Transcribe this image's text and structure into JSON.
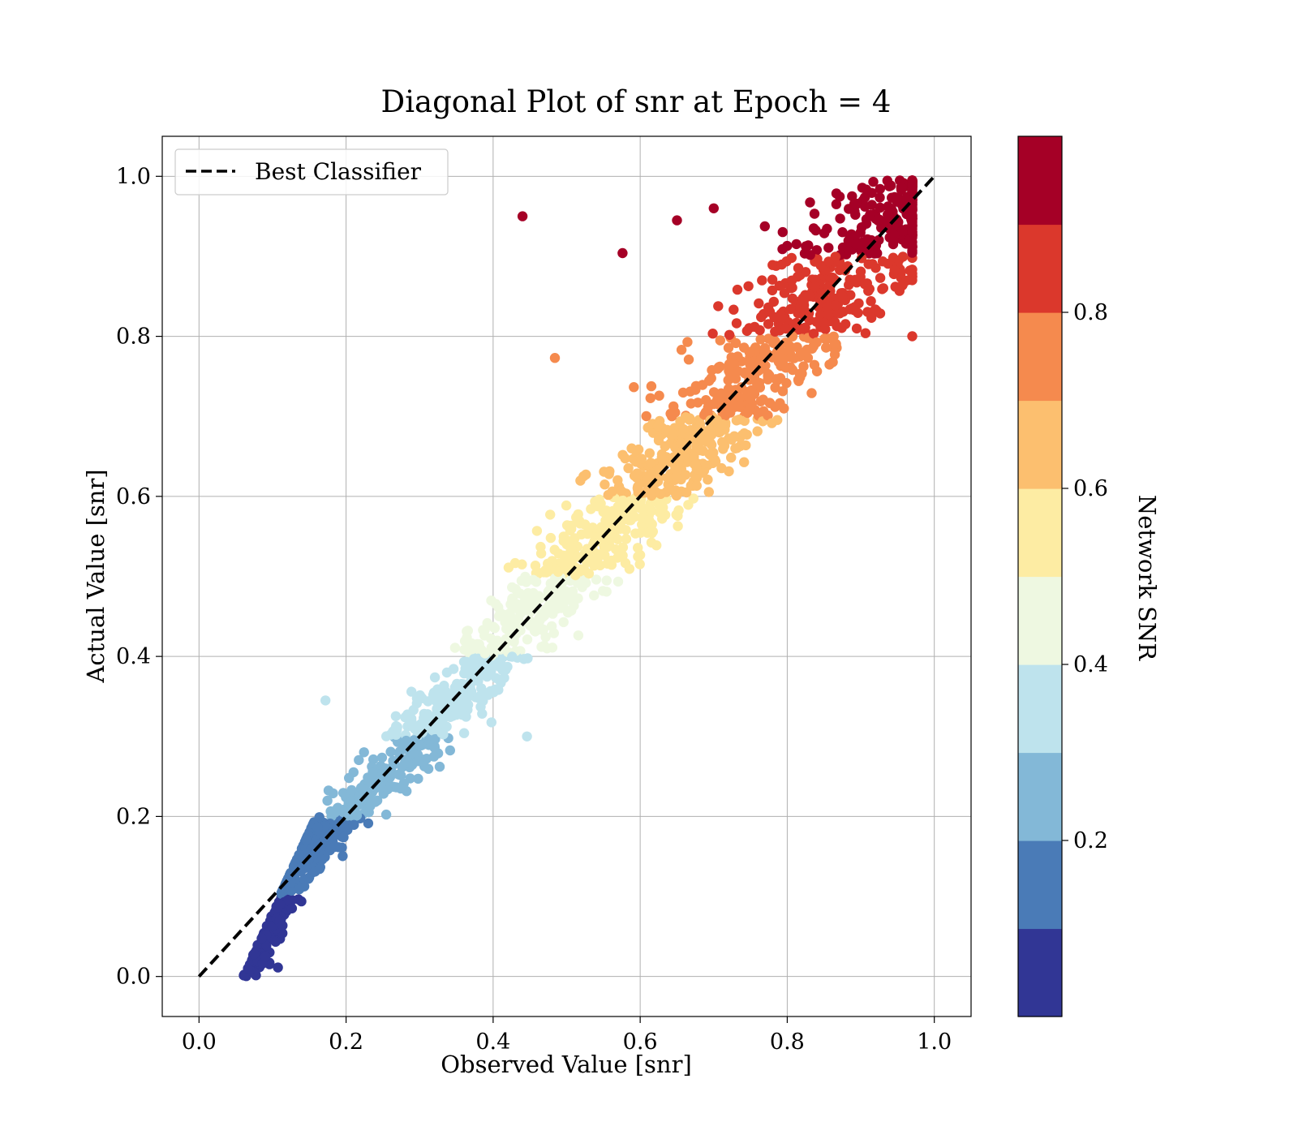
{
  "chart_data": {
    "type": "scatter",
    "title": "Diagonal Plot of snr at Epoch = 4",
    "xlabel": "Observed Value [snr]",
    "ylabel": "Actual Value [snr]",
    "xlim": [
      -0.05,
      1.05
    ],
    "ylim": [
      -0.05,
      1.05
    ],
    "xticks": [
      "0.0",
      "0.2",
      "0.4",
      "0.6",
      "0.8",
      "1.0"
    ],
    "yticks": [
      "0.0",
      "0.2",
      "0.4",
      "0.6",
      "0.8",
      "1.0"
    ],
    "grid": true,
    "legend": {
      "placement": "top-left",
      "entries": [
        {
          "label": "Best Classifier",
          "style": "dashed-line",
          "color": "#000000"
        }
      ]
    },
    "reference_line": {
      "from": [
        0,
        0
      ],
      "to": [
        1,
        1
      ],
      "style": "dashed",
      "color": "#000000"
    },
    "point_count": 2000,
    "point_distribution": {
      "relationship": "points cluster along y = x with scatter growing toward high values",
      "color_by": "actual value",
      "outliers": [
        {
          "x": 0.44,
          "y": 0.95
        },
        {
          "x": 0.576,
          "y": 0.904
        },
        {
          "x": 0.65,
          "y": 0.945
        },
        {
          "x": 0.7,
          "y": 0.96
        },
        {
          "x": 0.484,
          "y": 0.773
        },
        {
          "x": 0.172,
          "y": 0.345
        },
        {
          "x": 0.446,
          "y": 0.3
        }
      ]
    },
    "colorbar": {
      "label": "Network SNR",
      "range": [
        0.0,
        1.0
      ],
      "ticks": [
        "0.2",
        "0.4",
        "0.6",
        "0.8"
      ],
      "tick_values": [
        0.2,
        0.4,
        0.6,
        0.8
      ],
      "colors": [
        "#313695",
        "#4a7bb7",
        "#83b8d7",
        "#bee3ed",
        "#eef8e1",
        "#fdeca3",
        "#fcbf6f",
        "#f58a4e",
        "#db382c",
        "#a50026"
      ]
    }
  }
}
